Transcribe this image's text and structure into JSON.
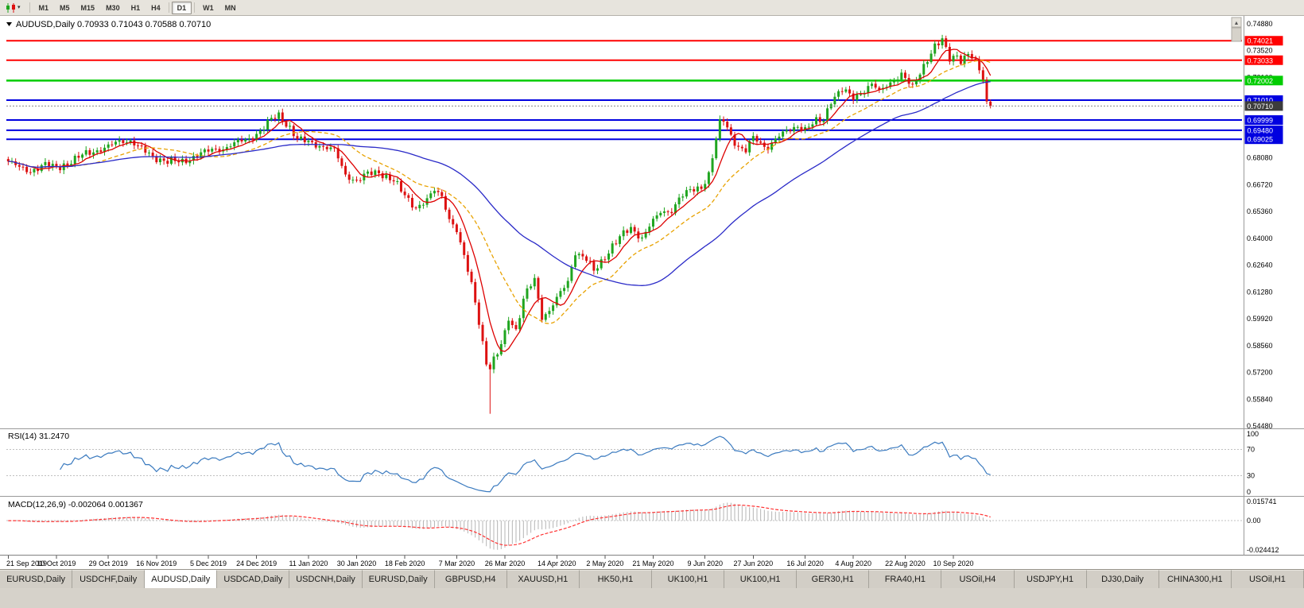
{
  "icons": {
    "caret": "▾",
    "scroll_up": "▲"
  },
  "toolbar": {
    "timeframes": [
      "M1",
      "M5",
      "M15",
      "M30",
      "H1",
      "H4",
      "D1",
      "W1",
      "MN"
    ],
    "active": "D1"
  },
  "chart_data": {
    "type": "candlestick",
    "symbol": "AUDUSD",
    "period": "Daily",
    "header_line": "AUDUSD,Daily 0.70933 0.71043 0.70588 0.70710",
    "ohlc_display": {
      "open": 0.70933,
      "high": 0.71043,
      "low": 0.70588,
      "close": 0.7071
    },
    "y_axis": {
      "scale_max": 0.752,
      "scale_min": 0.544,
      "ticks": [
        "0.74880",
        "0.73520",
        "0.72160",
        "0.70800",
        "0.69440",
        "0.68080",
        "0.66720",
        "0.65360",
        "0.64000",
        "0.62640",
        "0.61280",
        "0.59920",
        "0.58560",
        "0.57200",
        "0.55840",
        "0.54480"
      ]
    },
    "x_axis": {
      "labels": [
        "21 Sep 2019",
        "10 Oct 2019",
        "29 Oct 2019",
        "16 Nov 2019",
        "5 Dec 2019",
        "24 Dec 2019",
        "11 Jan 2020",
        "30 Jan 2020",
        "18 Feb 2020",
        "7 Mar 2020",
        "26 Mar 2020",
        "14 Apr 2020",
        "2 May 2020",
        "21 May 2020",
        "9 Jun 2020",
        "27 Jun 2020",
        "16 Jul 2020",
        "4 Aug 2020",
        "22 Aug 2020",
        "10 Sep 2020"
      ]
    },
    "price_path_anchors": [
      [
        0,
        0.679
      ],
      [
        3,
        0.6758
      ],
      [
        6,
        0.6742
      ],
      [
        10,
        0.6772
      ],
      [
        13,
        0.6758
      ],
      [
        17,
        0.6788
      ],
      [
        21,
        0.6832
      ],
      [
        26,
        0.6856
      ],
      [
        30,
        0.6892
      ],
      [
        33,
        0.6896
      ],
      [
        36,
        0.6852
      ],
      [
        39,
        0.6812
      ],
      [
        43,
        0.6792
      ],
      [
        47,
        0.6786
      ],
      [
        52,
        0.6832
      ],
      [
        55,
        0.6846
      ],
      [
        58,
        0.6856
      ],
      [
        61,
        0.6882
      ],
      [
        65,
        0.6902
      ],
      [
        68,
        0.6946
      ],
      [
        71,
        0.7002
      ],
      [
        73,
        0.7022
      ],
      [
        76,
        0.6962
      ],
      [
        78,
        0.6902
      ],
      [
        82,
        0.6882
      ],
      [
        85,
        0.6866
      ],
      [
        88,
        0.6846
      ],
      [
        91,
        0.6722
      ],
      [
        94,
        0.6692
      ],
      [
        97,
        0.6726
      ],
      [
        100,
        0.6736
      ],
      [
        104,
        0.6692
      ],
      [
        107,
        0.6616
      ],
      [
        110,
        0.6556
      ],
      [
        113,
        0.6592
      ],
      [
        115,
        0.6642
      ],
      [
        117,
        0.6616
      ],
      [
        119,
        0.6502
      ],
      [
        121,
        0.6436
      ],
      [
        123,
        0.6302
      ],
      [
        125,
        0.6172
      ],
      [
        127,
        0.5982
      ],
      [
        129,
        0.5762
      ],
      [
        130,
        0.5742
      ],
      [
        132,
        0.5812
      ],
      [
        134,
        0.5922
      ],
      [
        135,
        0.6002
      ],
      [
        137,
        0.5932
      ],
      [
        139,
        0.6082
      ],
      [
        140,
        0.6132
      ],
      [
        142,
        0.6192
      ],
      [
        144,
        0.6002
      ],
      [
        146,
        0.6032
      ],
      [
        148,
        0.6092
      ],
      [
        151,
        0.6182
      ],
      [
        153,
        0.6332
      ],
      [
        156,
        0.6292
      ],
      [
        158,
        0.6232
      ],
      [
        160,
        0.6282
      ],
      [
        163,
        0.6362
      ],
      [
        166,
        0.6422
      ],
      [
        168,
        0.6452
      ],
      [
        171,
        0.6402
      ],
      [
        173,
        0.6462
      ],
      [
        176,
        0.6532
      ],
      [
        179,
        0.6542
      ],
      [
        181,
        0.6602
      ],
      [
        184,
        0.6642
      ],
      [
        187,
        0.6662
      ],
      [
        189,
        0.6722
      ],
      [
        191,
        0.6902
      ],
      [
        192,
        0.6982
      ],
      [
        193,
        0.7002
      ],
      [
        195,
        0.6922
      ],
      [
        197,
        0.6862
      ],
      [
        199,
        0.6842
      ],
      [
        201,
        0.6912
      ],
      [
        203,
        0.6882
      ],
      [
        205,
        0.6862
      ],
      [
        207,
        0.6902
      ],
      [
        210,
        0.6942
      ],
      [
        213,
        0.6972
      ],
      [
        215,
        0.6952
      ],
      [
        218,
        0.6992
      ],
      [
        220,
        0.7002
      ],
      [
        222,
        0.7102
      ],
      [
        225,
        0.7152
      ],
      [
        228,
        0.7112
      ],
      [
        231,
        0.7152
      ],
      [
        233,
        0.7182
      ],
      [
        235,
        0.7142
      ],
      [
        238,
        0.7192
      ],
      [
        241,
        0.7232
      ],
      [
        244,
        0.7162
      ],
      [
        246,
        0.7242
      ],
      [
        248,
        0.7312
      ],
      [
        250,
        0.7372
      ],
      [
        252,
        0.7402
      ],
      [
        254,
        0.7312
      ],
      [
        256,
        0.7332
      ],
      [
        257,
        0.7302
      ],
      [
        259,
        0.7332
      ],
      [
        261,
        0.7292
      ],
      [
        263,
        0.7212
      ],
      [
        264,
        0.7095
      ],
      [
        265,
        0.7071
      ]
    ],
    "crash_low": {
      "index": 130,
      "price": 0.551
    },
    "peak_high": {
      "index": 252,
      "price": 0.7414
    },
    "colors": {
      "bull": "#1FA51F",
      "bear": "#DD1111",
      "background": "#FFFFFF"
    },
    "moving_averages": [
      {
        "period": 7,
        "color": "#DD0000",
        "style": "solid"
      },
      {
        "period": 20,
        "color": "#E8A200",
        "style": "dashed"
      },
      {
        "period": 50,
        "color": "#2A2AC8",
        "style": "solid"
      }
    ],
    "levels": [
      {
        "price": 0.74021,
        "label": "0.74021",
        "color": "#FF0000",
        "width": 2
      },
      {
        "price": 0.73033,
        "label": "0.73033",
        "color": "#FF0000",
        "width": 2
      },
      {
        "price": 0.72002,
        "label": "0.72002",
        "color": "#00CC00",
        "width": 2.5
      },
      {
        "price": 0.7101,
        "label": "0.71010",
        "color": "#0000E0",
        "width": 2
      },
      {
        "price": 0.69999,
        "label": "0.69999",
        "color": "#0000E0",
        "width": 2
      },
      {
        "price": 0.6948,
        "label": "0.69480",
        "color": "#0000E0",
        "width": 2
      },
      {
        "price": 0.69025,
        "label": "0.69025",
        "color": "#0000E0",
        "width": 2
      }
    ],
    "current_price": {
      "value": 0.7071,
      "label": "0.70710",
      "badge_color": "#3C3C3C"
    },
    "indicators": {
      "rsi": {
        "display": "RSI(14) 31.2470",
        "period": 14,
        "value": 31.247,
        "axis_ticks": [
          "100",
          "70",
          "30",
          "0"
        ],
        "levels": [
          70,
          30
        ],
        "color": "#3A7ABF",
        "range": [
          0,
          100
        ]
      },
      "macd": {
        "display": "MACD(12,26,9) -0.002064 0.001367",
        "fast": 12,
        "slow": 26,
        "signal": 9,
        "values": [
          -0.002064,
          0.001367
        ],
        "axis_ticks": [
          "0.015741",
          "0.00",
          "-0.024412"
        ],
        "scale_max": 0.015741,
        "scale_min": -0.024412,
        "histogram_color": "#B4B4B4",
        "signal_color": "#FF3232"
      }
    }
  },
  "tabs": {
    "active_index": 2,
    "items": [
      "EURUSD,Daily",
      "USDCHF,Daily",
      "AUDUSD,Daily",
      "USDCAD,Daily",
      "USDCNH,Daily",
      "EURUSD,Daily",
      "GBPUSD,H4",
      "XAUUSD,H1",
      "HK50,H1",
      "UK100,H1",
      "UK100,H1",
      "GER30,H1",
      "FRA40,H1",
      "USOil,H4",
      "USDJPY,H1",
      "DJ30,Daily",
      "CHINA300,H1",
      "USOil,H1"
    ]
  }
}
